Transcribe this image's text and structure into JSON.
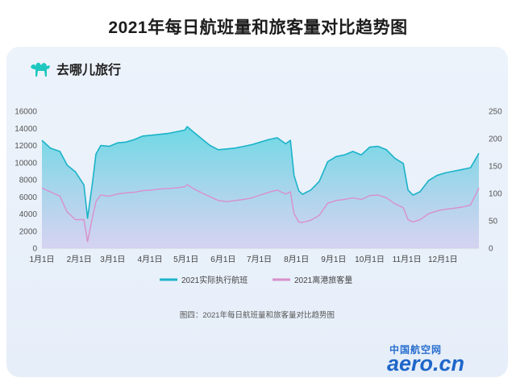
{
  "page_title": "2021年每日航班量和旅客量对比趋势图",
  "brand": {
    "name": "去哪儿旅行",
    "logo_icon": "camel-icon",
    "logo_color": "#1ec7c0"
  },
  "caption": "图四：2021年每日航班量和旅客量对比趋势图",
  "watermark": {
    "line1": "中国航空网",
    "line2": "aero.cn"
  },
  "colors": {
    "flights": "#1bb3c8",
    "passengers": "#d98fcb",
    "fill_top": "#5fd6e2",
    "fill_bottom": "#cfc9ee"
  },
  "chart_data": {
    "type": "line",
    "title": "",
    "x_ticks": [
      "1月1日",
      "2月1日",
      "3月1日",
      "4月1日",
      "5月1日",
      "6月1日",
      "7月1日",
      "8月1日",
      "9月1日",
      "10月1日",
      "11月1日",
      "12月1日"
    ],
    "left_axis": {
      "ticks": [
        "0",
        "2000",
        "4000",
        "6000",
        "8000",
        "10000",
        "12000",
        "14000",
        "16000"
      ],
      "ylim": [
        0,
        16000
      ]
    },
    "right_axis": {
      "ticks": [
        "0",
        "50",
        "100",
        "150",
        "200",
        "250"
      ],
      "ylim": [
        0,
        250
      ]
    },
    "legend": [
      {
        "label": "2021实际执行航班",
        "color": "#1bb3c8"
      },
      {
        "label": "2021离港旅客量",
        "color": "#d98fcb"
      }
    ],
    "legend_position": "bottom",
    "series": [
      {
        "name": "2021实际执行航班",
        "axis": "left",
        "x": [
          0,
          7,
          15,
          21,
          28,
          35,
          38,
          42,
          45,
          49,
          56,
          63,
          70,
          77,
          84,
          91,
          98,
          105,
          112,
          119,
          121,
          126,
          133,
          140,
          147,
          154,
          161,
          168,
          175,
          182,
          189,
          196,
          203,
          207,
          210,
          214,
          217,
          224,
          231,
          238,
          245,
          252,
          259,
          266,
          273,
          280,
          287,
          294,
          301,
          305,
          309,
          315,
          322,
          329,
          336,
          343,
          350,
          357,
          364
        ],
        "y": [
          12600,
          11700,
          11300,
          9700,
          8900,
          7400,
          3500,
          7500,
          11000,
          12000,
          11900,
          12300,
          12400,
          12700,
          13100,
          13200,
          13300,
          13400,
          13600,
          13800,
          14200,
          13600,
          12800,
          12000,
          11500,
          11600,
          11700,
          11900,
          12100,
          12400,
          12700,
          12900,
          12200,
          12600,
          8500,
          6700,
          6300,
          6800,
          7800,
          10100,
          10700,
          10900,
          11300,
          10900,
          11800,
          11900,
          11500,
          10500,
          9900,
          6800,
          6200,
          6600,
          7900,
          8500,
          8800,
          9000,
          9200,
          9400,
          11100
        ]
      },
      {
        "name": "2021离港旅客量",
        "axis": "right",
        "x": [
          0,
          7,
          15,
          21,
          28,
          35,
          38,
          42,
          45,
          49,
          56,
          63,
          70,
          77,
          84,
          91,
          98,
          105,
          112,
          119,
          121,
          126,
          133,
          140,
          147,
          154,
          161,
          168,
          175,
          182,
          189,
          196,
          203,
          207,
          210,
          214,
          217,
          224,
          231,
          238,
          245,
          252,
          259,
          266,
          273,
          280,
          287,
          294,
          301,
          305,
          309,
          315,
          322,
          329,
          336,
          343,
          350,
          357,
          364
        ],
        "y": [
          110,
          103,
          95,
          66,
          52,
          52,
          12,
          55,
          85,
          97,
          95,
          99,
          101,
          102,
          105,
          106,
          108,
          109,
          110,
          112,
          116,
          109,
          101,
          94,
          87,
          85,
          87,
          89,
          92,
          97,
          102,
          106,
          99,
          103,
          63,
          48,
          47,
          51,
          60,
          82,
          87,
          89,
          92,
          89,
          96,
          97,
          92,
          81,
          74,
          52,
          48,
          52,
          63,
          68,
          71,
          73,
          75,
          79,
          110
        ]
      }
    ]
  }
}
